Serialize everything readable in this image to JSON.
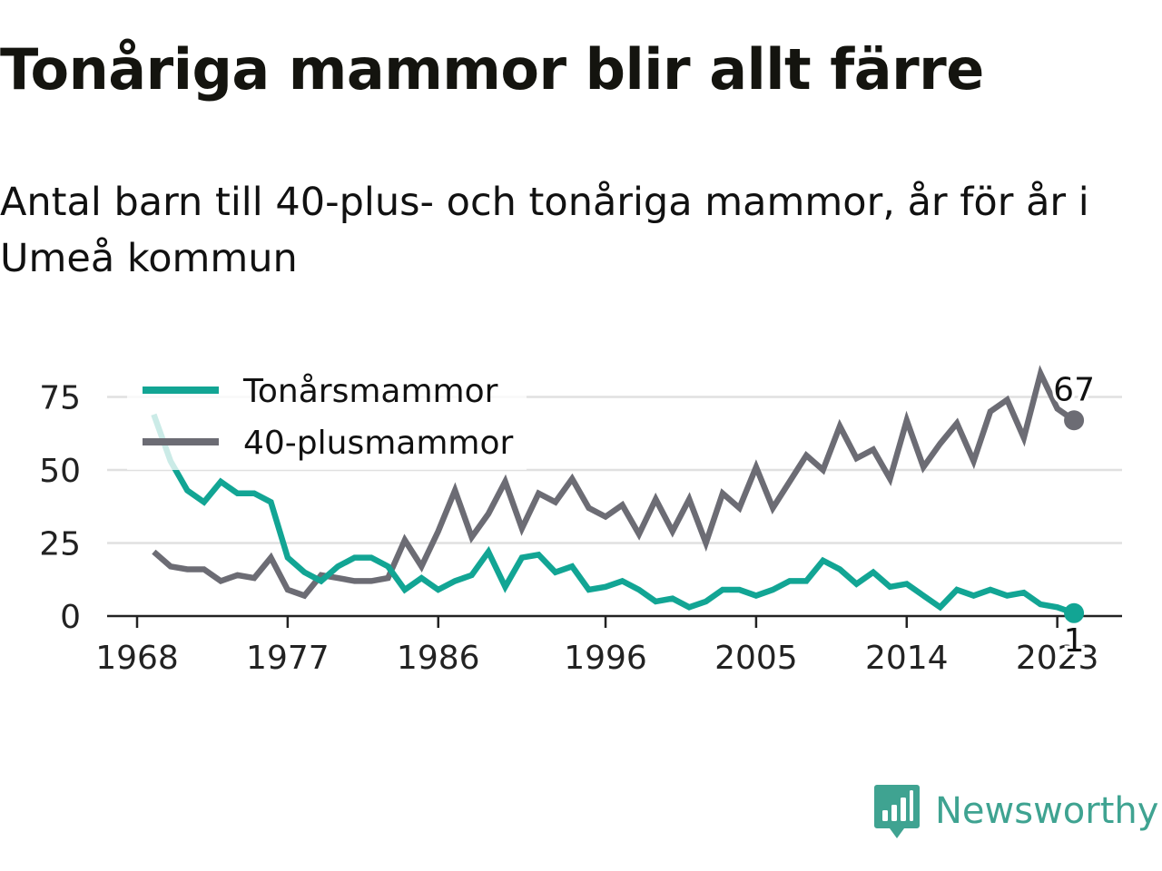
{
  "title": "Tonåriga mammor blir allt färre",
  "subtitle": "Antal barn till 40-plus- och tonåriga mammor, år för år i Umeå kommun",
  "brand": {
    "name": "Newsworthy",
    "icon": "newsworthy-logo-icon",
    "color": "#3fa391"
  },
  "chart_data": {
    "type": "line",
    "grid": true,
    "legend_placement": "top-left",
    "ylim": [
      0,
      85
    ],
    "y_ticks": [
      0,
      25,
      50,
      75
    ],
    "x_ticks": [
      1968,
      1977,
      1986,
      1996,
      2005,
      2014,
      2023
    ],
    "x": [
      1969,
      1970,
      1971,
      1972,
      1973,
      1974,
      1975,
      1976,
      1977,
      1978,
      1979,
      1980,
      1981,
      1982,
      1983,
      1984,
      1985,
      1986,
      1987,
      1988,
      1989,
      1990,
      1991,
      1992,
      1993,
      1994,
      1995,
      1996,
      1997,
      1998,
      1999,
      2000,
      2001,
      2002,
      2003,
      2004,
      2005,
      2006,
      2007,
      2008,
      2009,
      2010,
      2011,
      2012,
      2013,
      2014,
      2015,
      2016,
      2017,
      2018,
      2019,
      2020,
      2021,
      2022,
      2023,
      2024
    ],
    "series": [
      {
        "name": "Tonårsmammor",
        "color": "#12a594",
        "end_label": "1",
        "values": [
          69,
          53,
          43,
          39,
          46,
          42,
          42,
          39,
          20,
          15,
          12,
          17,
          20,
          20,
          17,
          9,
          13,
          9,
          12,
          14,
          22,
          10,
          20,
          21,
          15,
          17,
          9,
          10,
          12,
          9,
          5,
          6,
          3,
          5,
          9,
          9,
          7,
          9,
          12,
          12,
          19,
          16,
          11,
          15,
          10,
          11,
          7,
          3,
          9,
          7,
          9,
          7,
          8,
          4,
          3,
          1
        ]
      },
      {
        "name": "40-plusmammor",
        "color": "#6c6c74",
        "end_label": "67",
        "values": [
          22,
          17,
          16,
          16,
          12,
          14,
          13,
          20,
          9,
          7,
          14,
          13,
          12,
          12,
          13,
          26,
          17,
          29,
          43,
          27,
          35,
          46,
          30,
          42,
          39,
          47,
          37,
          34,
          38,
          28,
          40,
          29,
          40,
          25,
          42,
          37,
          51,
          37,
          46,
          55,
          50,
          65,
          54,
          57,
          47,
          67,
          51,
          59,
          66,
          53,
          70,
          74,
          61,
          83,
          71,
          67
        ]
      }
    ]
  }
}
